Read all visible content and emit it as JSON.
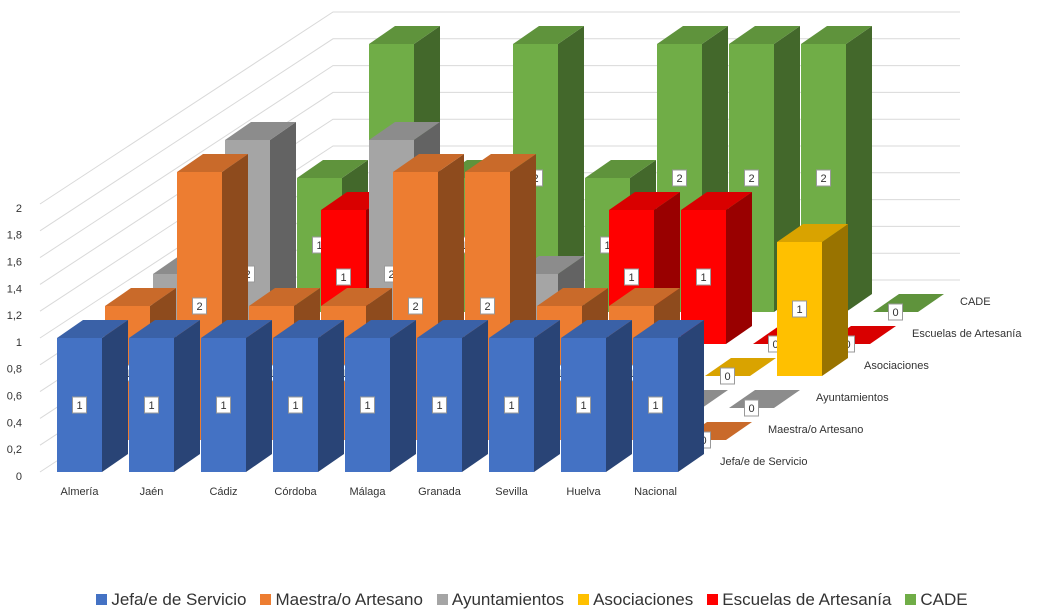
{
  "chart_data": {
    "type": "bar3d",
    "categories": [
      "Almería",
      "Jaén",
      "Cádiz",
      "Córdoba",
      "Málaga",
      "Granada",
      "Sevilla",
      "Huelva",
      "Nacional"
    ],
    "series": [
      {
        "name": "Jefa/e de Servicio",
        "color": "#4472c4",
        "values": [
          1,
          1,
          1,
          1,
          1,
          1,
          1,
          1,
          1
        ]
      },
      {
        "name": "Maestra/o Artesano",
        "color": "#ed7d31",
        "values": [
          1,
          2,
          1,
          1,
          2,
          2,
          1,
          1,
          0
        ]
      },
      {
        "name": "Ayuntamientos",
        "color": "#a5a5a5",
        "values": [
          1,
          2,
          0,
          2,
          0,
          1,
          0,
          0,
          0
        ]
      },
      {
        "name": "Asociaciones",
        "color": "#ffc000",
        "values": [
          0,
          0,
          0,
          0,
          0,
          0,
          0,
          0,
          1
        ]
      },
      {
        "name": "Escuelas de Artesanía",
        "color": "#ff0000",
        "values": [
          0,
          1,
          0,
          0,
          0,
          1,
          1,
          0,
          0
        ]
      },
      {
        "name": "CADE",
        "color": "#70ad47",
        "values": [
          1,
          2,
          1,
          2,
          1,
          2,
          2,
          2,
          0
        ]
      }
    ],
    "ylim": [
      0,
      2
    ],
    "yticks": [
      0,
      {
        "value": 0.2,
        "label": "0,2"
      },
      {
        "value": 0.4,
        "label": "0,4"
      },
      {
        "value": 0.6,
        "label": "0,6"
      },
      {
        "value": 0.8,
        "label": "0,8"
      },
      1,
      {
        "value": 1.2,
        "label": "1,2"
      },
      {
        "value": 1.4,
        "label": "1,4"
      },
      {
        "value": 1.6,
        "label": "1,6"
      },
      {
        "value": 1.8,
        "label": "1,8"
      },
      2
    ],
    "grid": true
  }
}
